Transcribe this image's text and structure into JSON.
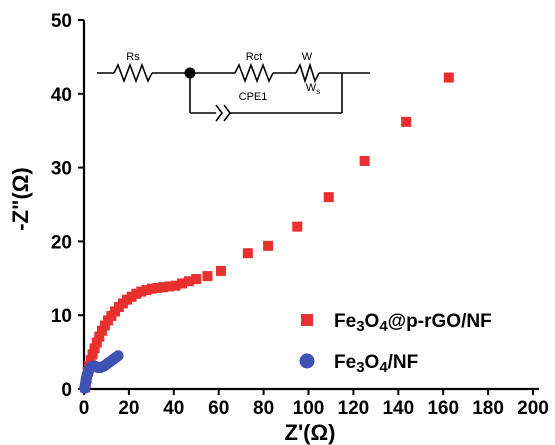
{
  "chart_data": {
    "type": "scatter",
    "xlabel": "Z'(Ω)",
    "ylabel": "-Z\"(Ω)",
    "xlim": [
      0,
      200
    ],
    "ylim": [
      0,
      50
    ],
    "x_ticks": [
      0,
      20,
      40,
      60,
      80,
      100,
      120,
      140,
      160,
      180,
      200
    ],
    "y_ticks": [
      0,
      10,
      20,
      30,
      40,
      50
    ],
    "grid": false,
    "legend_position": "bottom-right",
    "series": [
      {
        "name": "Fe3O4@p-rGO/NF",
        "name_main": "Fe",
        "name_sub1": "3",
        "name_mid": "O",
        "name_sub2": "4",
        "name_rest": "@p-rGO/NF",
        "marker": "square",
        "color": "#e8312f",
        "points": [
          [
            0.5,
            0.2
          ],
          [
            0.8,
            0.8
          ],
          [
            1.2,
            1.5
          ],
          [
            1.7,
            2.3
          ],
          [
            2.3,
            3.1
          ],
          [
            3.0,
            3.9
          ],
          [
            3.8,
            4.7
          ],
          [
            4.7,
            5.5
          ],
          [
            5.7,
            6.3
          ],
          [
            6.8,
            7.1
          ],
          [
            8.0,
            7.9
          ],
          [
            9.3,
            8.6
          ],
          [
            10.7,
            9.3
          ],
          [
            12.2,
            9.9
          ],
          [
            13.8,
            10.5
          ],
          [
            15.5,
            11.1
          ],
          [
            17.3,
            11.6
          ],
          [
            19.2,
            12.1
          ],
          [
            21.2,
            12.5
          ],
          [
            23.3,
            12.9
          ],
          [
            25.5,
            13.2
          ],
          [
            27.8,
            13.4
          ],
          [
            30.2,
            13.6
          ],
          [
            32.7,
            13.7
          ],
          [
            35.3,
            13.8
          ],
          [
            38.0,
            13.9
          ],
          [
            40.8,
            14.0
          ],
          [
            43.7,
            14.3
          ],
          [
            46.7,
            14.6
          ],
          [
            50.0,
            14.9
          ],
          [
            55.0,
            15.3
          ],
          [
            61.0,
            16.0
          ],
          [
            73.0,
            18.4
          ],
          [
            82.0,
            19.4
          ],
          [
            95.0,
            22.0
          ],
          [
            109.0,
            26.0
          ],
          [
            125.0,
            30.9
          ],
          [
            143.5,
            36.2
          ],
          [
            162.5,
            42.2
          ]
        ]
      },
      {
        "name": "Fe3O4/NF",
        "name_main": "Fe",
        "name_sub1": "3",
        "name_mid": "O",
        "name_sub2": "4",
        "name_rest": "/NF",
        "marker": "circle",
        "color": "#3f51b5",
        "points": [
          [
            0.3,
            0.1
          ],
          [
            0.5,
            0.5
          ],
          [
            0.8,
            1.0
          ],
          [
            1.1,
            1.5
          ],
          [
            1.5,
            2.0
          ],
          [
            2.0,
            2.4
          ],
          [
            2.5,
            2.8
          ],
          [
            3.2,
            3.0
          ],
          [
            4.0,
            3.1
          ],
          [
            4.8,
            3.1
          ],
          [
            5.6,
            3.0
          ],
          [
            6.4,
            2.9
          ],
          [
            7.2,
            2.9
          ],
          [
            8.0,
            3.0
          ],
          [
            8.9,
            3.1
          ],
          [
            9.8,
            3.3
          ],
          [
            10.7,
            3.5
          ],
          [
            11.6,
            3.7
          ],
          [
            12.5,
            3.9
          ],
          [
            13.4,
            4.1
          ],
          [
            14.3,
            4.3
          ],
          [
            15.2,
            4.5
          ]
        ]
      }
    ]
  },
  "circuit": {
    "labels": {
      "rs": "Rs",
      "rct": "Rct",
      "w": "W",
      "ws_main": "W",
      "ws_sub": "s",
      "cpe": "CPE1"
    }
  },
  "colors": {
    "axis": "#000000",
    "circuit": "#000000"
  }
}
